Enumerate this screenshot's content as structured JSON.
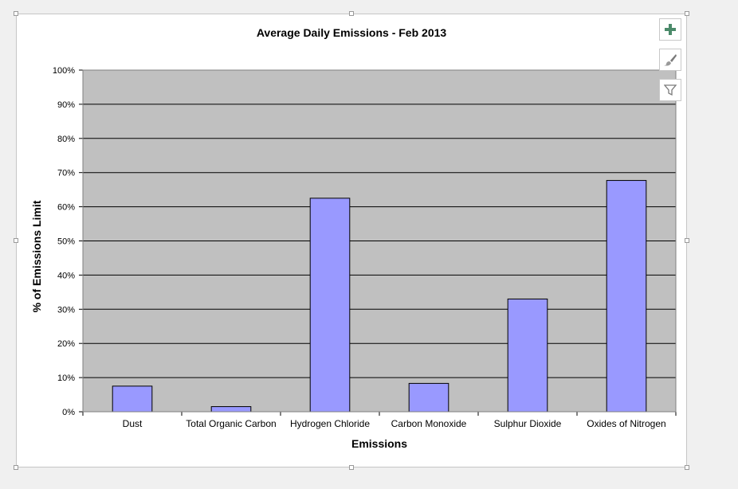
{
  "chart_data": {
    "type": "bar",
    "title": "Average Daily Emissions - Feb 2013",
    "xlabel": "Emissions",
    "ylabel": "% of Emissions Limit",
    "categories": [
      "Dust",
      "Total Organic Carbon",
      "Hydrogen Chloride",
      "Carbon Monoxide",
      "Sulphur Dioxide",
      "Oxides of Nitrogen"
    ],
    "values": [
      7.5,
      1.5,
      62.5,
      8.3,
      33,
      67.7
    ],
    "ylim": [
      0,
      100
    ],
    "yticks": [
      "0%",
      "10%",
      "20%",
      "30%",
      "40%",
      "50%",
      "60%",
      "70%",
      "80%",
      "90%",
      "100%"
    ],
    "grid": true,
    "legend": "none",
    "colors": {
      "bar": "#9999ff",
      "plot_background": "#c0c0c0",
      "gridline": "#000000"
    }
  },
  "toolbar": {
    "elements_button_icon": "plus-icon",
    "styles_button_icon": "paintbrush-icon",
    "filter_button_icon": "filter-icon"
  }
}
